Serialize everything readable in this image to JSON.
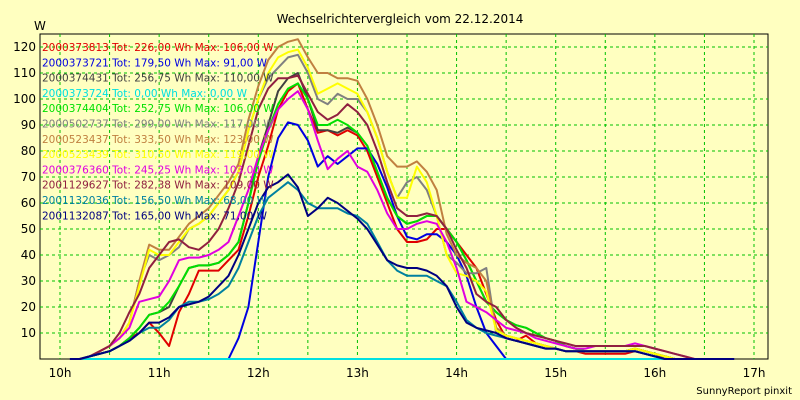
{
  "chart_data": {
    "type": "line",
    "title": "Wechselrichtervergleich vom 22.12.2014",
    "ylabel": "W",
    "xlabel": "",
    "credit": "SunnyReport pinxit",
    "x_ticks": [
      "10h",
      "11h",
      "12h",
      "13h",
      "14h",
      "15h",
      "16h",
      "17h"
    ],
    "x_tick_hours": [
      10,
      11,
      12,
      13,
      14,
      15,
      16,
      17
    ],
    "xlim": [
      10,
      17
    ],
    "ylim": [
      0,
      125
    ],
    "y_ticks": [
      10,
      20,
      30,
      40,
      50,
      60,
      70,
      80,
      90,
      100,
      110,
      120
    ],
    "grid": true,
    "legend_position": "top-left",
    "x": [
      10.1,
      10.2,
      10.3,
      10.4,
      10.5,
      10.6,
      10.7,
      10.8,
      10.9,
      11.0,
      11.1,
      11.2,
      11.3,
      11.4,
      11.5,
      11.6,
      11.7,
      11.8,
      11.9,
      12.0,
      12.1,
      12.2,
      12.3,
      12.4,
      12.5,
      12.6,
      12.7,
      12.8,
      12.9,
      13.0,
      13.1,
      13.2,
      13.3,
      13.4,
      13.5,
      13.6,
      13.7,
      13.8,
      13.9,
      14.0,
      14.1,
      14.2,
      14.3,
      14.4,
      14.5,
      14.6,
      14.7,
      14.8,
      14.9,
      15.0,
      15.1,
      15.2,
      15.3,
      15.4,
      15.5,
      15.6,
      15.7,
      15.8,
      15.9,
      16.0,
      16.1,
      16.2,
      16.3,
      16.4,
      16.5,
      16.6,
      16.7,
      16.8
    ],
    "series": [
      {
        "name": "2000373813 Tot: 226,00 Wh Max: 106,00 W",
        "color": "#E00000",
        "values": [
          0,
          0,
          1,
          2,
          3,
          5,
          8,
          10,
          14,
          10,
          5,
          18,
          25,
          34,
          34,
          34,
          38,
          42,
          55,
          70,
          82,
          96,
          103,
          106,
          96,
          87,
          88,
          86,
          88,
          86,
          80,
          70,
          60,
          50,
          45,
          45,
          46,
          50,
          50,
          45,
          40,
          35,
          25,
          15,
          8,
          7,
          9,
          6,
          5,
          4,
          3,
          3,
          2,
          2,
          2,
          2,
          2,
          3,
          2,
          1,
          1,
          0,
          0,
          0,
          0,
          0,
          0,
          0
        ]
      },
      {
        "name": "2000373721 Tot: 179,50 Wh Max: 91,00 W",
        "color": "#0000E0",
        "values": [
          0,
          0,
          0,
          0,
          0,
          0,
          0,
          0,
          0,
          0,
          0,
          0,
          0,
          0,
          0,
          0,
          0,
          8,
          20,
          45,
          70,
          85,
          91,
          90,
          84,
          74,
          78,
          75,
          78,
          81,
          81,
          75,
          66,
          55,
          47,
          46,
          48,
          48,
          45,
          40,
          32,
          20,
          10,
          5,
          0,
          null,
          null,
          null,
          null,
          null,
          null,
          null,
          null,
          null,
          null,
          null,
          null,
          null,
          null,
          null,
          null,
          null,
          null,
          null,
          null,
          null,
          null,
          null
        ]
      },
      {
        "name": "2000374431 Tot: 256,75 Wh Max: 110,00 W",
        "color": "#404040",
        "values": [
          0,
          0,
          1,
          2,
          3,
          5,
          8,
          12,
          17,
          18,
          20,
          28,
          35,
          36,
          36,
          37,
          40,
          45,
          60,
          78,
          90,
          103,
          108,
          110,
          100,
          88,
          88,
          87,
          89,
          87,
          82,
          72,
          62,
          55,
          52,
          53,
          55,
          55,
          50,
          45,
          38,
          30,
          22,
          18,
          15,
          13,
          12,
          10,
          8,
          7,
          5,
          4,
          3,
          3,
          3,
          3,
          3,
          4,
          3,
          2,
          1,
          0,
          0,
          0,
          0,
          0,
          0,
          0
        ]
      },
      {
        "name": "2000373724 Tot: 0,00 Wh Max: 0,00 W",
        "color": "#00E0E0",
        "values": [
          0,
          0,
          0,
          0,
          0,
          0,
          0,
          0,
          0,
          0,
          0,
          0,
          0,
          0,
          0,
          0,
          0,
          0,
          0,
          0,
          0,
          0,
          0,
          0,
          0,
          0,
          0,
          0,
          0,
          0,
          0,
          0,
          0,
          0,
          0,
          0,
          0,
          0,
          0,
          0,
          0,
          0,
          0,
          0,
          0,
          0,
          0,
          0,
          0,
          0,
          0,
          0,
          0,
          0,
          0,
          0,
          0,
          0,
          0,
          0,
          0,
          0,
          0,
          0,
          0,
          0,
          0,
          0
        ]
      },
      {
        "name": "2000374404 Tot: 252,75 Wh Max: 106,00 W",
        "color": "#00E000",
        "values": [
          0,
          0,
          1,
          2,
          3,
          5,
          8,
          12,
          17,
          18,
          22,
          28,
          35,
          36,
          36,
          37,
          40,
          45,
          60,
          76,
          88,
          98,
          104,
          106,
          100,
          90,
          90,
          92,
          90,
          87,
          82,
          72,
          62,
          55,
          52,
          53,
          55,
          55,
          50,
          45,
          38,
          30,
          22,
          18,
          15,
          13,
          12,
          10,
          8,
          7,
          5,
          4,
          3,
          3,
          3,
          3,
          3,
          4,
          3,
          2,
          1,
          0,
          0,
          0,
          0,
          0,
          0,
          0
        ]
      },
      {
        "name": "2000502737 Tot: 299,00 Wh Max: 117,00 W",
        "color": "#808080",
        "values": [
          0,
          0,
          1,
          3,
          5,
          8,
          14,
          30,
          40,
          38,
          40,
          43,
          50,
          52,
          55,
          60,
          65,
          72,
          88,
          100,
          108,
          112,
          116,
          117,
          110,
          100,
          98,
          102,
          100,
          100,
          95,
          85,
          72,
          62,
          68,
          70,
          65,
          55,
          40,
          37,
          33,
          33,
          35,
          10,
          8,
          7,
          6,
          5,
          4,
          4,
          3,
          3,
          3,
          3,
          3,
          3,
          3,
          4,
          3,
          2,
          1,
          0,
          0,
          0,
          0,
          0,
          0,
          0
        ]
      },
      {
        "name": "2000523437 Tot: 333,50 Wh Max: 123,00 W",
        "color": "#C08040",
        "values": [
          0,
          0,
          1,
          3,
          5,
          8,
          14,
          30,
          44,
          42,
          42,
          47,
          52,
          55,
          58,
          63,
          68,
          75,
          92,
          105,
          115,
          120,
          122,
          123,
          116,
          110,
          110,
          108,
          108,
          107,
          100,
          90,
          78,
          74,
          74,
          76,
          72,
          65,
          48,
          40,
          37,
          35,
          30,
          12,
          9,
          8,
          7,
          6,
          5,
          4,
          3,
          3,
          3,
          3,
          3,
          3,
          3,
          4,
          3,
          2,
          1,
          0,
          0,
          0,
          0,
          0,
          0,
          0
        ]
      },
      {
        "name": "2000523439 Tot: 310,50 Wh Max: 119,00 W",
        "color": "#FFFF00",
        "values": [
          0,
          0,
          1,
          3,
          5,
          8,
          14,
          28,
          42,
          40,
          40,
          45,
          50,
          52,
          55,
          60,
          65,
          72,
          88,
          100,
          110,
          116,
          118,
          119,
          112,
          102,
          104,
          106,
          104,
          102,
          95,
          85,
          72,
          62,
          62,
          74,
          68,
          55,
          40,
          33,
          32,
          30,
          26,
          11,
          9,
          8,
          7,
          6,
          5,
          4,
          3,
          3,
          3,
          3,
          3,
          3,
          3,
          4,
          3,
          2,
          1,
          0,
          0,
          0,
          0,
          0,
          0,
          0
        ]
      },
      {
        "name": "2000376360 Tot: 245,25 Wh Max: 103,00 W",
        "color": "#E000E0",
        "values": [
          0,
          0,
          1,
          3,
          5,
          8,
          12,
          22,
          23,
          24,
          30,
          38,
          39,
          39,
          40,
          42,
          45,
          55,
          65,
          78,
          88,
          96,
          100,
          103,
          96,
          84,
          73,
          77,
          80,
          74,
          72,
          65,
          56,
          50,
          50,
          52,
          53,
          52,
          45,
          35,
          22,
          20,
          18,
          15,
          12,
          11,
          10,
          8,
          7,
          6,
          5,
          4,
          4,
          5,
          5,
          5,
          5,
          6,
          5,
          4,
          3,
          2,
          1,
          0,
          0,
          0,
          0,
          0
        ]
      },
      {
        "name": "2001129627 Tot: 282,38 Wh Max: 109,00 W",
        "color": "#902040",
        "values": [
          0,
          0,
          1,
          3,
          5,
          10,
          18,
          25,
          35,
          40,
          45,
          46,
          43,
          42,
          45,
          50,
          58,
          68,
          82,
          96,
          104,
          108,
          108,
          109,
          102,
          95,
          92,
          94,
          98,
          95,
          90,
          80,
          68,
          58,
          55,
          55,
          56,
          55,
          50,
          42,
          35,
          25,
          22,
          20,
          15,
          12,
          10,
          9,
          8,
          7,
          6,
          5,
          5,
          5,
          5,
          5,
          5,
          5,
          5,
          4,
          3,
          2,
          1,
          0,
          0,
          0,
          0,
          0
        ]
      },
      {
        "name": "2001132036 Tot: 156,50 Wh Max: 68,00 W",
        "color": "#0080A0",
        "values": [
          0,
          0,
          1,
          2,
          3,
          5,
          7,
          10,
          12,
          12,
          15,
          20,
          22,
          22,
          23,
          25,
          28,
          35,
          45,
          55,
          62,
          65,
          68,
          65,
          60,
          58,
          58,
          58,
          56,
          55,
          52,
          45,
          38,
          34,
          32,
          32,
          32,
          30,
          28,
          22,
          15,
          12,
          10,
          9,
          8,
          7,
          6,
          5,
          4,
          4,
          3,
          3,
          3,
          3,
          3,
          3,
          3,
          3,
          2,
          1,
          0,
          0,
          0,
          0,
          0,
          0,
          0,
          0
        ]
      },
      {
        "name": "2001132087 Tot: 165,00 Wh Max: 71,00 W",
        "color": "#000080",
        "values": [
          0,
          0,
          1,
          2,
          3,
          5,
          7,
          10,
          14,
          14,
          16,
          20,
          21,
          22,
          24,
          28,
          32,
          40,
          50,
          60,
          66,
          68,
          71,
          66,
          55,
          58,
          62,
          60,
          57,
          54,
          50,
          44,
          38,
          36,
          35,
          35,
          34,
          32,
          28,
          20,
          14,
          12,
          11,
          10,
          8,
          7,
          6,
          5,
          4,
          4,
          3,
          3,
          3,
          3,
          3,
          3,
          3,
          3,
          2,
          1,
          0,
          0,
          0,
          0,
          0,
          0,
          0,
          0
        ]
      }
    ]
  }
}
